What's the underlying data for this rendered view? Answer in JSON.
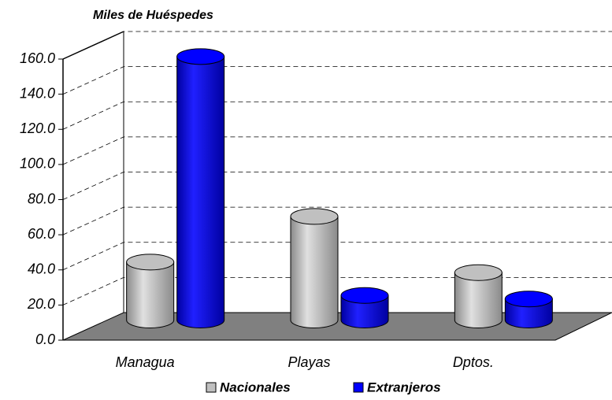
{
  "chart_data": {
    "type": "bar3d",
    "title": "Miles de Huéspedes",
    "categories": [
      "Managua",
      "Playas",
      "Dptos."
    ],
    "series": [
      {
        "name": "Nacionales",
        "color": "#c0c0c0",
        "values": [
          33,
          59,
          27
        ]
      },
      {
        "name": "Extranjeros",
        "color": "#0000ff",
        "values": [
          150,
          14,
          12
        ]
      }
    ],
    "ylim": [
      0,
      160
    ],
    "yticks": [
      {
        "value": 0,
        "label": "0.0"
      },
      {
        "value": 20,
        "label": "20.0"
      },
      {
        "value": 40,
        "label": "40.0"
      },
      {
        "value": 60,
        "label": "60.0"
      },
      {
        "value": 80,
        "label": "80.0"
      },
      {
        "value": 100,
        "label": "100.0"
      },
      {
        "value": 120,
        "label": "120.0"
      },
      {
        "value": 140,
        "label": "140.0"
      },
      {
        "value": 160,
        "label": "160.0"
      }
    ],
    "grid": true,
    "legend": "bottom"
  }
}
